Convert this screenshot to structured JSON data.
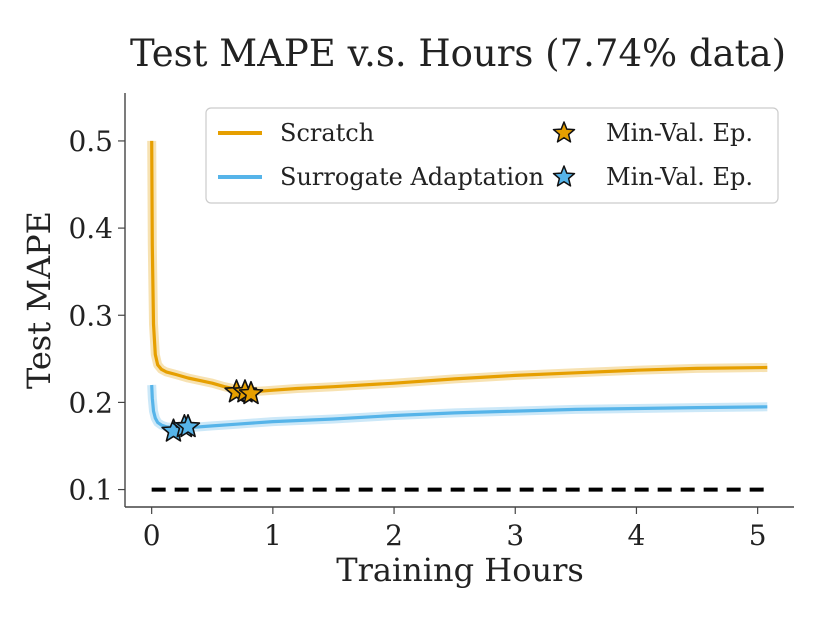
{
  "chart_data": {
    "type": "line",
    "title": "Test MAPE v.s. Hours (7.74% data)",
    "xlabel": "Training Hours",
    "ylabel": "Test MAPE",
    "xlim": [
      -0.22,
      5.3
    ],
    "ylim": [
      0.08,
      0.555
    ],
    "xticks": [
      0,
      1,
      2,
      3,
      4,
      5
    ],
    "yticks": [
      0.1,
      0.2,
      0.3,
      0.4,
      0.5
    ],
    "xtick_labels": [
      "0",
      "1",
      "2",
      "3",
      "4",
      "5"
    ],
    "ytick_labels": [
      "0.1",
      "0.2",
      "0.3",
      "0.4",
      "0.5"
    ],
    "legend_position": "top-right",
    "colors": {
      "scratch": "#E69F00",
      "surrogate": "#56B4E9",
      "reference": "#000000"
    },
    "series": [
      {
        "name": "Scratch",
        "x": [
          0.0,
          0.005,
          0.015,
          0.03,
          0.05,
          0.08,
          0.12,
          0.2,
          0.3,
          0.4,
          0.5,
          0.6,
          0.7,
          0.8,
          0.9,
          1.0,
          1.2,
          1.5,
          2.0,
          2.5,
          3.0,
          3.5,
          4.0,
          4.5,
          5.08
        ],
        "y": [
          0.5,
          0.38,
          0.29,
          0.255,
          0.243,
          0.238,
          0.235,
          0.232,
          0.228,
          0.225,
          0.222,
          0.218,
          0.215,
          0.213,
          0.213,
          0.214,
          0.216,
          0.218,
          0.222,
          0.227,
          0.231,
          0.234,
          0.237,
          0.239,
          0.24
        ]
      },
      {
        "name": "Surrogate Adaptation",
        "x": [
          0.0,
          0.005,
          0.015,
          0.03,
          0.05,
          0.08,
          0.12,
          0.2,
          0.3,
          0.5,
          0.7,
          1.0,
          1.5,
          2.0,
          2.5,
          3.0,
          3.5,
          4.0,
          4.5,
          5.08
        ],
        "y": [
          0.22,
          0.205,
          0.19,
          0.182,
          0.177,
          0.174,
          0.172,
          0.171,
          0.171,
          0.173,
          0.175,
          0.178,
          0.181,
          0.185,
          0.188,
          0.19,
          0.192,
          0.193,
          0.194,
          0.195
        ]
      }
    ],
    "min_val_markers": [
      {
        "series": "Scratch",
        "label": "Min-Val. Ep.",
        "points": [
          [
            0.7,
            0.212
          ],
          [
            0.77,
            0.212
          ],
          [
            0.82,
            0.21
          ]
        ]
      },
      {
        "series": "Surrogate Adaptation",
        "label": "Min-Val. Ep.",
        "points": [
          [
            0.18,
            0.167
          ],
          [
            0.27,
            0.172
          ],
          [
            0.3,
            0.172
          ]
        ]
      }
    ],
    "reference_line": {
      "y": 0.1,
      "x_start": 0.0,
      "x_end": 5.08,
      "style": "dashed"
    },
    "legend": [
      {
        "label": "Scratch",
        "kind": "line",
        "color_key": "scratch"
      },
      {
        "label": "Min-Val. Ep.",
        "kind": "star",
        "color_key": "scratch"
      },
      {
        "label": "Surrogate Adaptation",
        "kind": "line",
        "color_key": "surrogate"
      },
      {
        "label": "Min-Val. Ep.",
        "kind": "star",
        "color_key": "surrogate"
      }
    ]
  }
}
